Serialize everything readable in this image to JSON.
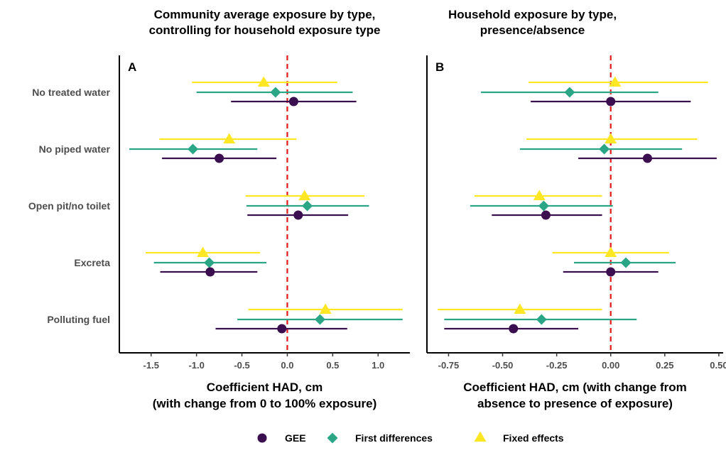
{
  "chart_data": {
    "type": "scatter",
    "categories": [
      "No treated water",
      "No piped water",
      "Open pit/no toilet",
      "Excreta",
      "Polluting fuel"
    ],
    "series_colors": {
      "GEE": "#3b0f4f",
      "First differences": "#2aa585",
      "Fixed effects": "#fde725"
    },
    "reference_line": {
      "x": 0,
      "color": "#e31a1c",
      "style": "dashed"
    },
    "legend": {
      "position": "bottom",
      "entries": [
        {
          "name": "GEE",
          "shape": "circle"
        },
        {
          "name": "First differences",
          "shape": "diamond"
        },
        {
          "name": "Fixed effects",
          "shape": "triangle"
        }
      ]
    },
    "panels": [
      {
        "id": "A",
        "title": [
          "Community average exposure by type,",
          "controlling for household exposure type"
        ],
        "xlabel": [
          "Coefficient HAD, cm",
          "(with change from 0 to 100% exposure)"
        ],
        "xlim": [
          -1.85,
          1.35
        ],
        "xticks": [
          -1.5,
          -1.0,
          -0.5,
          0.0,
          0.5,
          1.0
        ],
        "tick_labels": [
          "-1.5",
          "-1.0",
          "-0.5",
          "0.0",
          "0.5",
          "1.0"
        ],
        "series": [
          {
            "name": "Fixed effects",
            "estimates": [
              -0.26,
              -0.64,
              0.19,
              -0.93,
              0.42
            ],
            "lower": [
              -1.05,
              -1.41,
              -0.46,
              -1.56,
              -0.43
            ],
            "upper": [
              0.55,
              0.1,
              0.85,
              -0.3,
              1.27
            ]
          },
          {
            "name": "First differences",
            "estimates": [
              -0.13,
              -1.04,
              0.22,
              -0.86,
              0.36
            ],
            "lower": [
              -1.0,
              -1.74,
              -0.45,
              -1.47,
              -0.55
            ],
            "upper": [
              0.72,
              -0.33,
              0.9,
              -0.23,
              1.27
            ]
          },
          {
            "name": "GEE",
            "estimates": [
              0.07,
              -0.75,
              0.12,
              -0.85,
              -0.06
            ],
            "lower": [
              -0.62,
              -1.38,
              -0.44,
              -1.4,
              -0.79
            ],
            "upper": [
              0.76,
              -0.12,
              0.67,
              -0.33,
              0.66
            ]
          }
        ]
      },
      {
        "id": "B",
        "title": [
          "Household exposure by type,",
          "presence/absence"
        ],
        "xlabel": [
          "Coefficient HAD, cm (with change from",
          "absence to presence of exposure)"
        ],
        "xlim": [
          -0.85,
          0.52
        ],
        "xticks": [
          -0.75,
          -0.5,
          -0.25,
          0.0,
          0.25,
          0.5
        ],
        "tick_labels": [
          "-0.75",
          "-0.50",
          "-0.25",
          "0.00",
          "0.25",
          "0.50"
        ],
        "series": [
          {
            "name": "Fixed effects",
            "estimates": [
              0.02,
              0.0,
              -0.33,
              0.0,
              -0.42
            ],
            "lower": [
              -0.38,
              -0.39,
              -0.63,
              -0.27,
              -0.8
            ],
            "upper": [
              0.45,
              0.4,
              -0.04,
              0.27,
              -0.04
            ]
          },
          {
            "name": "First differences",
            "estimates": [
              -0.19,
              -0.03,
              -0.31,
              0.07,
              -0.32
            ],
            "lower": [
              -0.6,
              -0.42,
              -0.65,
              -0.17,
              -0.77
            ],
            "upper": [
              0.22,
              0.33,
              0.01,
              0.3,
              0.12
            ]
          },
          {
            "name": "GEE",
            "estimates": [
              0.0,
              0.17,
              -0.3,
              0.0,
              -0.45
            ],
            "lower": [
              -0.37,
              -0.15,
              -0.55,
              -0.22,
              -0.77
            ],
            "upper": [
              0.37,
              0.49,
              -0.04,
              0.22,
              -0.15
            ]
          }
        ]
      }
    ]
  }
}
